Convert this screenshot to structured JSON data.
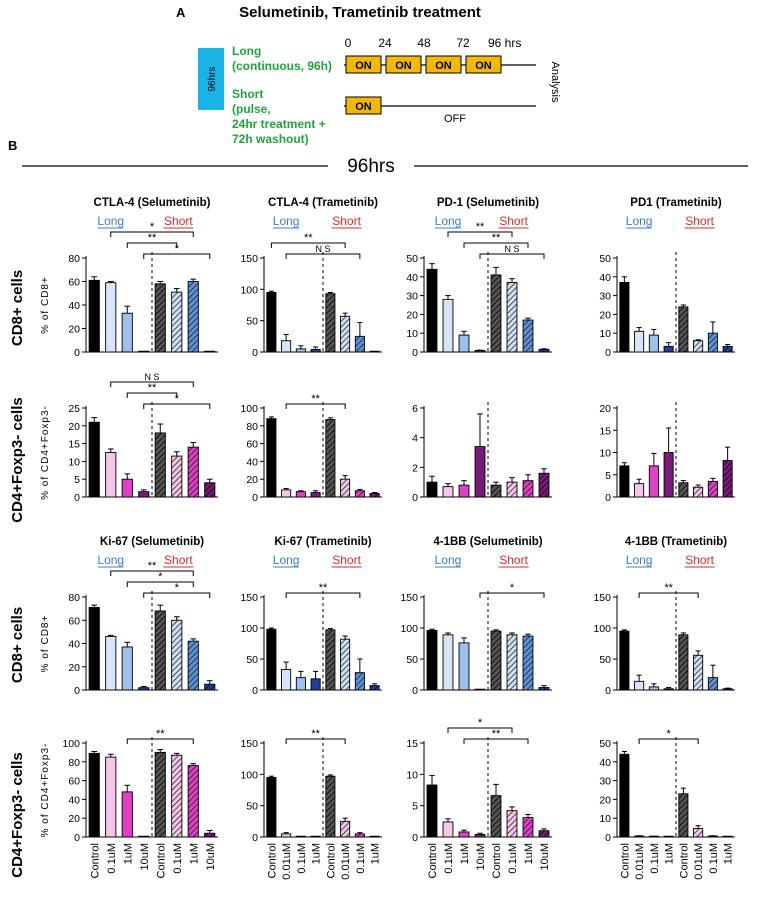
{
  "panelA": {
    "letter": "A",
    "title": "Selumetinib, Trametinib treatment",
    "side_label": "96hrs",
    "long_label": [
      "Long",
      "(continuous, 96h)"
    ],
    "short_label": [
      "Short",
      "(pulse,",
      "24hr treatment +",
      "72h washout)"
    ],
    "time_ticks": [
      "0",
      "24",
      "48",
      "72",
      "96 hrs"
    ],
    "on_label": "ON",
    "off_label": "OFF",
    "analysis_label": "Analysis",
    "colors": {
      "box": "#1AB3E6",
      "on": "#F5B800",
      "green": "#22A33C"
    }
  },
  "panelB": {
    "letter": "B",
    "header": "96hrs",
    "long_label": "Long",
    "short_label": "Short",
    "long_color": "#3B7FC4",
    "short_color": "#D92B2B",
    "ns_label": "N S",
    "row_labels": [
      "CD8+ cells",
      "CD4+Foxp3- cells",
      "CD8+ cells",
      "CD4+Foxp3- cells"
    ],
    "ylabels": [
      "% of CD8+",
      "% of CD4+Foxp3-"
    ],
    "xlabels_sel": [
      "Control",
      "0.1uM",
      "1uM",
      "10uM",
      "Control",
      "0.1uM",
      "1uM",
      "10uM"
    ],
    "xlabels_tra": [
      "Control",
      "0.01uM",
      "0.1uM",
      "1uM",
      "Control",
      "0.01uM",
      "0.1uM",
      "1uM"
    ]
  },
  "chart_data": [
    {
      "id": "r0c0",
      "type": "bar",
      "title": "CTLA-4 (Selumetinib)",
      "drug": "sel",
      "row": 0,
      "ylim": [
        0,
        80
      ],
      "ticks": [
        0,
        20,
        40,
        60,
        80
      ],
      "values": [
        61,
        59,
        33,
        0,
        58,
        51,
        60,
        0
      ],
      "errors": [
        3,
        1,
        6,
        0,
        2,
        3,
        2,
        0
      ],
      "signif": [
        {
          "from": 1,
          "to": 6,
          "label": "*"
        },
        {
          "from": 2,
          "to": 5,
          "label": "**"
        },
        {
          "from": 3,
          "to": 7,
          "label": "*"
        }
      ]
    },
    {
      "id": "r0c1",
      "type": "bar",
      "title": "CTLA-4 (Trametinib)",
      "drug": "tra",
      "row": 0,
      "ylim": [
        0,
        150
      ],
      "ticks": [
        0,
        50,
        100,
        150
      ],
      "values": [
        95,
        18,
        5,
        4,
        93,
        57,
        25,
        0
      ],
      "errors": [
        2,
        10,
        5,
        4,
        2,
        5,
        22,
        0
      ],
      "signif": [
        {
          "from": 0,
          "to": 5,
          "label": "**"
        },
        {
          "from": 1,
          "to": 6,
          "label": "N S"
        }
      ]
    },
    {
      "id": "r0c2",
      "type": "bar",
      "title": "PD-1 (Selumetinib)",
      "drug": "sel",
      "row": 0,
      "ylim": [
        0,
        50
      ],
      "ticks": [
        0,
        10,
        20,
        30,
        40,
        50
      ],
      "values": [
        44,
        28,
        9,
        0.8,
        41,
        37,
        17,
        1.4
      ],
      "errors": [
        3,
        2,
        2,
        0.2,
        4,
        2,
        1,
        0.3
      ],
      "signif": [
        {
          "from": 1,
          "to": 5,
          "label": "**"
        },
        {
          "from": 2,
          "to": 6,
          "label": "**"
        },
        {
          "from": 3,
          "to": 7,
          "label": "N S"
        }
      ]
    },
    {
      "id": "r0c3",
      "type": "bar",
      "title": "PD1 (Trametinib)",
      "drug": "tra",
      "row": 0,
      "ylim": [
        0,
        50
      ],
      "ticks": [
        0,
        10,
        20,
        30,
        40,
        50
      ],
      "values": [
        37,
        11,
        9,
        3,
        24,
        6,
        10,
        3
      ],
      "errors": [
        3,
        2,
        3,
        2,
        1,
        0.5,
        6,
        1
      ],
      "signif": []
    },
    {
      "id": "r1c0",
      "type": "bar",
      "title": "",
      "drug": "sel",
      "row": 1,
      "ylim": [
        0,
        25
      ],
      "ticks": [
        0,
        5,
        10,
        15,
        20,
        25
      ],
      "values": [
        21,
        12.5,
        5,
        1.5,
        18,
        11.5,
        14,
        4
      ],
      "errors": [
        1.3,
        1,
        1.5,
        0.5,
        2.5,
        1.2,
        1.3,
        1
      ],
      "signif": [
        {
          "from": 1,
          "to": 6,
          "label": "N S"
        },
        {
          "from": 2,
          "to": 5,
          "label": "**"
        },
        {
          "from": 3,
          "to": 7,
          "label": "*"
        }
      ]
    },
    {
      "id": "r1c1",
      "type": "bar",
      "title": "",
      "drug": "tra",
      "row": 1,
      "ylim": [
        0,
        100
      ],
      "ticks": [
        0,
        20,
        40,
        60,
        80,
        100
      ],
      "values": [
        88,
        8,
        6,
        5,
        87,
        20,
        7,
        4
      ],
      "errors": [
        2,
        1.5,
        1,
        2,
        2,
        4,
        1.5,
        1
      ],
      "signif": [
        {
          "from": 1,
          "to": 5,
          "label": "**"
        }
      ]
    },
    {
      "id": "r1c2",
      "type": "bar",
      "title": "",
      "drug": "sel",
      "row": 1,
      "ylim": [
        0,
        6
      ],
      "ticks": [
        0,
        2,
        4,
        6
      ],
      "values": [
        1,
        0.7,
        0.8,
        3.4,
        0.8,
        1,
        1.1,
        1.6
      ],
      "errors": [
        0.4,
        0.2,
        0.3,
        2.2,
        0.2,
        0.3,
        0.4,
        0.3
      ],
      "signif": []
    },
    {
      "id": "r1c3",
      "type": "bar",
      "title": "",
      "drug": "tra",
      "row": 1,
      "ylim": [
        0,
        20
      ],
      "ticks": [
        0,
        5,
        10,
        15,
        20
      ],
      "values": [
        7,
        3,
        7,
        10,
        3.2,
        2.2,
        3.5,
        8.2
      ],
      "errors": [
        0.7,
        1,
        2.8,
        5.5,
        0.5,
        0.5,
        0.7,
        3
      ],
      "signif": []
    },
    {
      "id": "r2c0",
      "type": "bar",
      "title": "Ki-67 (Selumetinib)",
      "drug": "sel",
      "row": 2,
      "ylim": [
        0,
        80
      ],
      "ticks": [
        0,
        20,
        40,
        60,
        80
      ],
      "values": [
        71,
        46,
        37,
        2,
        68,
        60,
        42,
        5
      ],
      "errors": [
        2,
        1,
        4,
        1,
        5,
        3,
        2,
        3
      ],
      "signif": [
        {
          "from": 1,
          "to": 6,
          "label": "**"
        },
        {
          "from": 2,
          "to": 6,
          "label": "*"
        },
        {
          "from": 3,
          "to": 7,
          "label": "*"
        }
      ]
    },
    {
      "id": "r2c1",
      "type": "bar",
      "title": "Ki-67 (Trametinib)",
      "drug": "tra",
      "row": 2,
      "ylim": [
        0,
        150
      ],
      "ticks": [
        0,
        50,
        100,
        150
      ],
      "values": [
        98,
        33,
        20,
        18,
        97,
        82,
        28,
        7
      ],
      "errors": [
        2,
        12,
        10,
        12,
        2,
        5,
        22,
        3
      ],
      "signif": [
        {
          "from": 1,
          "to": 6,
          "label": "**"
        }
      ]
    },
    {
      "id": "r2c2",
      "type": "bar",
      "title": "4-1BB (Selumetinib)",
      "drug": "sel",
      "row": 2,
      "ylim": [
        0,
        150
      ],
      "ticks": [
        0,
        50,
        100,
        150
      ],
      "values": [
        96,
        89,
        76,
        0,
        95,
        89,
        87,
        4
      ],
      "errors": [
        2,
        3,
        8,
        0,
        2,
        3,
        3,
        3
      ],
      "signif": [
        {
          "from": 3,
          "to": 7,
          "label": "*"
        }
      ]
    },
    {
      "id": "r2c3",
      "type": "bar",
      "title": "4-1BB (Trametinib)",
      "drug": "tra",
      "row": 2,
      "ylim": [
        0,
        150
      ],
      "ticks": [
        0,
        50,
        100,
        150
      ],
      "values": [
        95,
        14,
        5,
        2,
        89,
        56,
        20,
        2
      ],
      "errors": [
        2,
        10,
        5,
        2,
        3,
        7,
        20,
        1
      ],
      "signif": [
        {
          "from": 1,
          "to": 5,
          "label": "**"
        }
      ]
    },
    {
      "id": "r3c0",
      "type": "bar",
      "title": "",
      "drug": "sel",
      "row": 3,
      "ylim": [
        0,
        100
      ],
      "ticks": [
        0,
        20,
        40,
        60,
        80,
        100
      ],
      "values": [
        89,
        85,
        48,
        0,
        90,
        87,
        76,
        4
      ],
      "errors": [
        2,
        3,
        7,
        0,
        3,
        2,
        2,
        3
      ],
      "signif": [
        {
          "from": 2,
          "to": 6,
          "label": "**"
        }
      ]
    },
    {
      "id": "r3c1",
      "type": "bar",
      "title": "",
      "drug": "tra",
      "row": 3,
      "ylim": [
        0,
        150
      ],
      "ticks": [
        0,
        50,
        100,
        150
      ],
      "values": [
        95,
        5,
        0,
        0,
        97,
        25,
        5,
        0
      ],
      "errors": [
        2,
        2,
        0,
        0,
        2,
        5,
        2,
        0
      ],
      "signif": [
        {
          "from": 1,
          "to": 5,
          "label": "**"
        }
      ]
    },
    {
      "id": "r3c2",
      "type": "bar",
      "title": "",
      "drug": "sel",
      "row": 3,
      "ylim": [
        0,
        15
      ],
      "ticks": [
        0,
        5,
        10,
        15
      ],
      "values": [
        8.3,
        2.4,
        0.8,
        0.4,
        6.6,
        4.2,
        3.1,
        1
      ],
      "errors": [
        1.5,
        0.5,
        0.3,
        0.2,
        1.8,
        0.6,
        0.5,
        0.3
      ],
      "signif": [
        {
          "from": 1,
          "to": 5,
          "label": "*"
        },
        {
          "from": 2,
          "to": 6,
          "label": "**"
        }
      ]
    },
    {
      "id": "r3c3",
      "type": "bar",
      "title": "",
      "drug": "tra",
      "row": 3,
      "ylim": [
        0,
        50
      ],
      "ticks": [
        0,
        10,
        20,
        30,
        40,
        50
      ],
      "values": [
        44,
        0.5,
        0.3,
        0.2,
        23,
        4.5,
        0.5,
        0.2
      ],
      "errors": [
        1.5,
        0.2,
        0.1,
        0,
        3,
        1.5,
        0.2,
        0
      ],
      "signif": [
        {
          "from": 1,
          "to": 5,
          "label": "*"
        }
      ]
    }
  ]
}
